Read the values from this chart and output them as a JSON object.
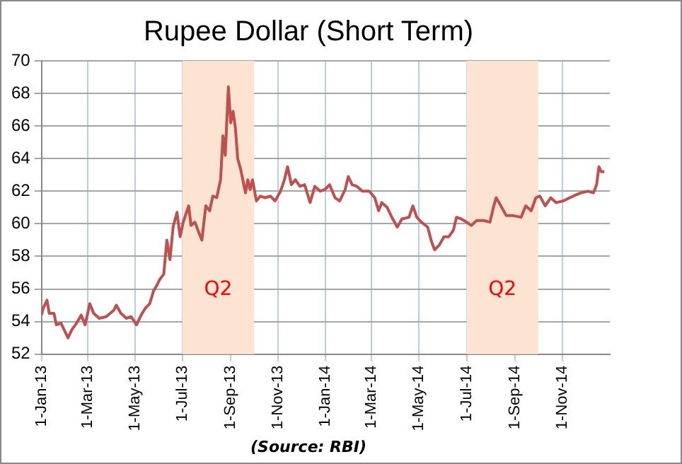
{
  "chart_data": {
    "type": "line",
    "title": "Rupee Dollar (Short Term)",
    "x": [
      "2013-01-01",
      "2013-01-03",
      "2013-01-08",
      "2013-01-11",
      "2013-01-17",
      "2013-01-20",
      "2013-01-26",
      "2013-01-30",
      "2013-02-04",
      "2013-02-09",
      "2013-02-15",
      "2013-02-21",
      "2013-02-26",
      "2013-03-04",
      "2013-03-09",
      "2013-03-16",
      "2013-03-25",
      "2013-04-04",
      "2013-04-07",
      "2013-04-13",
      "2013-04-20",
      "2013-04-26",
      "2013-05-03",
      "2013-05-09",
      "2013-05-14",
      "2013-05-20",
      "2013-05-25",
      "2013-05-29",
      "2013-06-02",
      "2013-06-07",
      "2013-06-11",
      "2013-06-15",
      "2013-06-19",
      "2013-06-24",
      "2013-06-28",
      "2013-07-02",
      "2013-07-09",
      "2013-07-12",
      "2013-07-17",
      "2013-07-21",
      "2013-07-26",
      "2013-07-31",
      "2013-08-05",
      "2013-08-09",
      "2013-08-14",
      "2013-08-19",
      "2013-08-22",
      "2013-08-25",
      "2013-08-27",
      "2013-08-29",
      "2013-09-01",
      "2013-09-04",
      "2013-09-07",
      "2013-09-10",
      "2013-09-14",
      "2013-09-17",
      "2013-09-20",
      "2013-09-23",
      "2013-09-26",
      "2013-09-29",
      "2013-10-04",
      "2013-10-09",
      "2013-10-15",
      "2013-10-22",
      "2013-10-28",
      "2013-11-04",
      "2013-11-09",
      "2013-11-13",
      "2013-11-18",
      "2013-11-23",
      "2013-11-29",
      "2013-12-05",
      "2013-12-12",
      "2013-12-18",
      "2013-12-25",
      "2013-12-31",
      "2014-01-06",
      "2014-01-13",
      "2014-01-19",
      "2014-01-26",
      "2014-01-30",
      "2014-02-04",
      "2014-02-10",
      "2014-02-17",
      "2014-02-26",
      "2014-03-05",
      "2014-03-10",
      "2014-03-14",
      "2014-03-21",
      "2014-03-27",
      "2014-04-03",
      "2014-04-09",
      "2014-04-18",
      "2014-04-23",
      "2014-04-28",
      "2014-05-04",
      "2014-05-12",
      "2014-05-17",
      "2014-05-21",
      "2014-05-27",
      "2014-06-02",
      "2014-06-08",
      "2014-06-14",
      "2014-06-18",
      "2014-06-24",
      "2014-07-01",
      "2014-07-07",
      "2014-07-14",
      "2014-07-23",
      "2014-07-31",
      "2014-08-05",
      "2014-08-08",
      "2014-08-14",
      "2014-08-21",
      "2014-08-30",
      "2014-09-09",
      "2014-09-15",
      "2014-09-22",
      "2014-09-28",
      "2014-10-03",
      "2014-10-10",
      "2014-10-17",
      "2014-10-24",
      "2014-11-02",
      "2014-11-15",
      "2014-11-25",
      "2014-12-04",
      "2014-12-11",
      "2014-12-15",
      "2014-12-18",
      "2014-12-21",
      "2014-12-25"
    ],
    "series": [
      {
        "color": "#c0504d",
        "values": [
          54.4,
          54.8,
          55.3,
          54.5,
          54.5,
          53.8,
          53.9,
          53.5,
          53.0,
          53.5,
          53.9,
          54.4,
          53.8,
          55.1,
          54.5,
          54.2,
          54.3,
          54.7,
          55.0,
          54.5,
          54.2,
          54.3,
          53.8,
          54.4,
          54.8,
          55.1,
          55.9,
          56.2,
          56.6,
          56.9,
          59.0,
          57.8,
          59.8,
          60.7,
          59.2,
          60.1,
          61.1,
          59.9,
          60.1,
          59.6,
          59.0,
          61.1,
          60.8,
          61.7,
          61.6,
          62.7,
          65.4,
          64.2,
          66.3,
          68.4,
          66.2,
          66.9,
          65.9,
          64.0,
          63.3,
          62.6,
          61.9,
          62.7,
          62.1,
          62.7,
          61.4,
          61.7,
          61.6,
          61.7,
          61.4,
          62.0,
          62.7,
          63.5,
          62.4,
          62.7,
          62.3,
          62.4,
          61.3,
          62.3,
          62.0,
          62.1,
          62.4,
          61.6,
          61.4,
          62.1,
          62.9,
          62.4,
          62.3,
          62.0,
          62.0,
          61.6,
          60.8,
          61.3,
          61.0,
          60.4,
          59.8,
          60.3,
          60.4,
          61.1,
          60.4,
          60.1,
          59.8,
          58.9,
          58.4,
          58.7,
          59.2,
          59.2,
          59.6,
          60.4,
          60.3,
          60.1,
          59.9,
          60.2,
          60.2,
          60.1,
          61.1,
          61.6,
          61.1,
          60.5,
          60.5,
          60.4,
          61.1,
          60.8,
          61.6,
          61.7,
          61.1,
          61.6,
          61.3,
          61.4,
          61.7,
          61.9,
          62.0,
          61.9,
          62.4,
          63.5,
          63.2,
          63.2
        ]
      }
    ],
    "xlim": [
      "2013-01-01",
      "2015-01-01"
    ],
    "xticks": [
      {
        "value": "2013-01-01",
        "label": "1-Jan-13"
      },
      {
        "value": "2013-03-01",
        "label": "1-Mar-13"
      },
      {
        "value": "2013-05-01",
        "label": "1-May-13"
      },
      {
        "value": "2013-07-01",
        "label": "1-Jul-13"
      },
      {
        "value": "2013-09-01",
        "label": "1-Sep-13"
      },
      {
        "value": "2013-11-01",
        "label": "1-Nov-13"
      },
      {
        "value": "2014-01-01",
        "label": "1-Jan-14"
      },
      {
        "value": "2014-03-01",
        "label": "1-Mar-14"
      },
      {
        "value": "2014-05-01",
        "label": "1-May-14"
      },
      {
        "value": "2014-07-01",
        "label": "1-Jul-14"
      },
      {
        "value": "2014-09-01",
        "label": "1-Sep-14"
      },
      {
        "value": "2014-11-01",
        "label": "1-Nov-14"
      }
    ],
    "ylim": [
      52,
      70
    ],
    "yticks": [
      52,
      54,
      56,
      58,
      60,
      62,
      64,
      66,
      68,
      70
    ],
    "grid": true,
    "marker": "none",
    "line_style": "solid",
    "bands": [
      {
        "axis": "x",
        "from": "2013-07-01",
        "to": "2013-10-01",
        "label": "Q2",
        "color": "#fde3d1"
      },
      {
        "axis": "x",
        "from": "2014-07-01",
        "to": "2014-10-01",
        "label": "Q2",
        "color": "#fde3d1"
      }
    ],
    "annotations": [
      "(Source: RBI)"
    ]
  }
}
